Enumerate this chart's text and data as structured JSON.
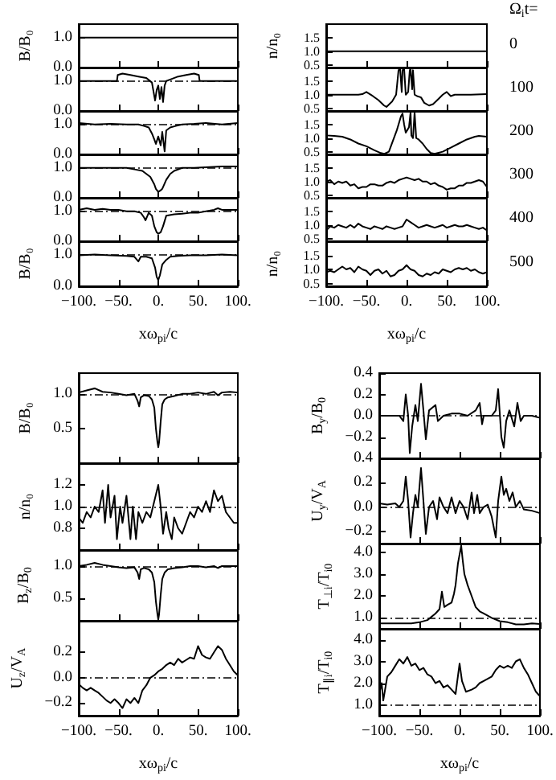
{
  "chart_data": [
    {
      "type": "line",
      "ylabel": "B/B₀",
      "color": "#000000",
      "x": [
        -100,
        100
      ],
      "values": [
        1,
        1
      ],
      "xlim": [
        -100,
        100
      ],
      "ylim": [
        0,
        1.45
      ],
      "xticks": [
        {
          "value": -100,
          "label": null
        },
        {
          "value": -50,
          "label": null
        },
        {
          "value": 0,
          "label": null
        },
        {
          "value": 50,
          "label": null
        },
        {
          "value": 100,
          "label": null
        }
      ],
      "yticks": [
        {
          "value": 0,
          "label": "0.0"
        },
        {
          "value": 1,
          "label": "1.0"
        }
      ],
      "tick_labels": "y"
    },
    {
      "type": "line",
      "color": "#000000",
      "x": [
        -100,
        -80,
        -60,
        -52,
        -51,
        -45,
        -35,
        -25,
        -15,
        -8,
        -4,
        -2,
        0,
        2,
        4,
        6,
        8,
        10,
        15,
        25,
        35,
        45,
        51,
        52,
        60,
        80,
        100
      ],
      "values": [
        1,
        1,
        1,
        1,
        1.2,
        1.25,
        1.2,
        1.15,
        1.1,
        0.95,
        0.35,
        0.7,
        0.85,
        0.4,
        0.8,
        0.3,
        0.85,
        1.0,
        1.05,
        1.15,
        1.2,
        1.25,
        1.2,
        1.0,
        1,
        1,
        1
      ],
      "xlim": [
        -100,
        100
      ],
      "ylim": [
        0,
        1.45
      ],
      "xticks": [
        {
          "value": -100,
          "label": null
        },
        {
          "value": -50,
          "label": null
        },
        {
          "value": 0,
          "label": null
        },
        {
          "value": 50,
          "label": null
        },
        {
          "value": 100,
          "label": null
        }
      ],
      "yticks": [
        {
          "value": 0,
          "label": "0.0"
        },
        {
          "value": 1,
          "label": "1.0"
        }
      ],
      "tick_labels": "y",
      "ref_lines": [
        {
          "axis": "y",
          "value": 1,
          "line_style": "dashed"
        }
      ]
    },
    {
      "type": "line",
      "color": "#000000",
      "x": [
        -100,
        -80,
        -60,
        -40,
        -25,
        -18,
        -12,
        -8,
        -5,
        -3,
        0,
        3,
        5,
        8,
        10,
        15,
        22,
        30,
        45,
        60,
        80,
        100
      ],
      "values": [
        1.05,
        1.0,
        1.02,
        1.0,
        1.0,
        0.95,
        0.9,
        0.7,
        0.5,
        0.35,
        0.6,
        0.3,
        0.75,
        0.1,
        0.8,
        0.9,
        0.95,
        1.0,
        1.02,
        1.05,
        1.0,
        1.05
      ],
      "xlim": [
        -100,
        100
      ],
      "ylim": [
        0,
        1.45
      ],
      "xticks": [
        {
          "value": -100,
          "label": null
        },
        {
          "value": -50,
          "label": null
        },
        {
          "value": 0,
          "label": null
        },
        {
          "value": 50,
          "label": null
        },
        {
          "value": 100,
          "label": null
        }
      ],
      "yticks": [
        {
          "value": 0,
          "label": "0.0"
        },
        {
          "value": 1,
          "label": "1.0"
        }
      ],
      "tick_labels": "y",
      "ref_lines": [
        {
          "axis": "y",
          "value": 1,
          "line_style": "dashed"
        }
      ]
    },
    {
      "type": "line",
      "color": "#000000",
      "x": [
        -100,
        -80,
        -60,
        -40,
        -30,
        -20,
        -10,
        -5,
        -3,
        0,
        3,
        5,
        10,
        15,
        20,
        30,
        45,
        60,
        80,
        100
      ],
      "values": [
        1.0,
        1.0,
        1.0,
        1.0,
        0.95,
        0.9,
        0.7,
        0.45,
        0.3,
        0.2,
        0.25,
        0.3,
        0.6,
        0.8,
        0.9,
        1.0,
        1.0,
        1.02,
        1.05,
        1.05
      ],
      "xlim": [
        -100,
        100
      ],
      "ylim": [
        0,
        1.45
      ],
      "xticks": [
        {
          "value": -100,
          "label": null
        },
        {
          "value": -50,
          "label": null
        },
        {
          "value": 0,
          "label": null
        },
        {
          "value": 50,
          "label": null
        },
        {
          "value": 100,
          "label": null
        }
      ],
      "yticks": [
        {
          "value": 0,
          "label": "0.0"
        },
        {
          "value": 1,
          "label": "1.0"
        }
      ],
      "tick_labels": "y",
      "ref_lines": [
        {
          "axis": "y",
          "value": 1,
          "line_style": "dashed"
        }
      ]
    },
    {
      "type": "line",
      "color": "#000000",
      "x": [
        -100,
        -90,
        -80,
        -70,
        -60,
        -50,
        -40,
        -30,
        -22,
        -18,
        -16,
        -12,
        -8,
        -5,
        -2,
        0,
        3,
        6,
        10,
        20,
        30,
        40,
        50,
        60,
        70,
        75,
        80,
        90,
        100
      ],
      "values": [
        1.05,
        1.1,
        1.05,
        1.08,
        1.05,
        1.05,
        1.0,
        1.0,
        0.95,
        0.8,
        0.7,
        0.95,
        0.85,
        0.5,
        0.3,
        0.25,
        0.3,
        0.5,
        0.85,
        0.9,
        0.92,
        0.95,
        0.95,
        1.0,
        1.05,
        1.1,
        1.05,
        1.05,
        1.05
      ],
      "xlim": [
        -100,
        100
      ],
      "ylim": [
        0,
        1.45
      ],
      "xticks": [
        {
          "value": -100,
          "label": null
        },
        {
          "value": -50,
          "label": null
        },
        {
          "value": 0,
          "label": null
        },
        {
          "value": 50,
          "label": null
        },
        {
          "value": 100,
          "label": null
        }
      ],
      "yticks": [
        {
          "value": 0,
          "label": "0.0"
        },
        {
          "value": 1,
          "label": "1.0"
        }
      ],
      "tick_labels": "y",
      "ref_lines": [
        {
          "axis": "y",
          "value": 1,
          "line_style": "dashed"
        }
      ]
    },
    {
      "type": "line",
      "ylabel": "B/B₀",
      "xlabel": "xω$_{pi}$/c",
      "color": "#000000",
      "x": [
        -100,
        -80,
        -60,
        -40,
        -30,
        -25,
        -22,
        -15,
        -8,
        -4,
        -2,
        0,
        2,
        5,
        10,
        15,
        25,
        40,
        60,
        80,
        100
      ],
      "values": [
        1.0,
        1.02,
        1.0,
        0.98,
        0.95,
        0.8,
        0.95,
        0.95,
        0.9,
        0.6,
        0.3,
        0.2,
        0.35,
        0.7,
        0.85,
        0.95,
        0.98,
        1.0,
        1.0,
        1.02,
        1.0
      ],
      "xlim": [
        -100,
        100
      ],
      "ylim": [
        0,
        1.45
      ],
      "xticks": [
        {
          "value": -100,
          "label": "−100."
        },
        {
          "value": -50,
          "label": "−50."
        },
        {
          "value": 0,
          "label": "0."
        },
        {
          "value": 50,
          "label": "50."
        },
        {
          "value": 100,
          "label": "100."
        }
      ],
      "yticks": [
        {
          "value": 0,
          "label": "0.0"
        },
        {
          "value": 1,
          "label": "1.0"
        }
      ],
      "ref_lines": [
        {
          "axis": "y",
          "value": 1,
          "line_style": "dashed"
        }
      ]
    },
    {
      "type": "line",
      "ylabel": "n/n₀",
      "annotations": [
        "Ω$_{i}$t=",
        "0"
      ],
      "color": "#000000",
      "x": [
        -100,
        100
      ],
      "values": [
        1,
        1
      ],
      "xlim": [
        -100,
        100
      ],
      "ylim": [
        0.4,
        2.0
      ],
      "xticks": [
        {
          "value": -100,
          "label": null
        },
        {
          "value": -50,
          "label": null
        },
        {
          "value": 0,
          "label": null
        },
        {
          "value": 50,
          "label": null
        },
        {
          "value": 100,
          "label": null
        }
      ],
      "yticks": [
        {
          "value": 0.5,
          "label": "0.5"
        },
        {
          "value": 1,
          "label": "1.0"
        },
        {
          "value": 1.5,
          "label": "1.5"
        }
      ],
      "tick_labels": "y"
    },
    {
      "type": "line",
      "annotations": [
        "100"
      ],
      "color": "#000000",
      "x": [
        -100,
        -80,
        -60,
        -55,
        -50,
        -42,
        -35,
        -28,
        -25,
        -18,
        -13,
        -10,
        -8,
        -6,
        -5,
        -3,
        -1,
        0,
        2,
        4,
        5,
        7,
        8,
        10,
        13,
        18,
        22,
        28,
        33,
        40,
        45,
        50,
        55,
        60,
        80,
        100
      ],
      "values": [
        1.0,
        1.0,
        1.0,
        1.02,
        1.1,
        0.95,
        0.8,
        0.6,
        0.55,
        0.75,
        1.0,
        1.9,
        1.95,
        1.1,
        1.9,
        1.95,
        1.0,
        1.0,
        1.1,
        1.9,
        1.95,
        1.2,
        1.9,
        1.0,
        0.95,
        0.9,
        0.7,
        0.6,
        0.65,
        0.85,
        1.0,
        1.1,
        0.95,
        1.0,
        1.0,
        1.02
      ],
      "xlim": [
        -100,
        100
      ],
      "ylim": [
        0.4,
        2.0
      ],
      "xticks": [
        {
          "value": -100,
          "label": null
        },
        {
          "value": -50,
          "label": null
        },
        {
          "value": 0,
          "label": null
        },
        {
          "value": 50,
          "label": null
        },
        {
          "value": 100,
          "label": null
        }
      ],
      "yticks": [
        {
          "value": 0.5,
          "label": "0.5"
        },
        {
          "value": 1,
          "label": "1.0"
        },
        {
          "value": 1.5,
          "label": "1.5"
        }
      ],
      "tick_labels": "y"
    },
    {
      "type": "line",
      "annotations": [
        "200"
      ],
      "color": "#000000",
      "x": [
        -100,
        -90,
        -80,
        -70,
        -60,
        -50,
        -40,
        -32,
        -28,
        -22,
        -17,
        -12,
        -9,
        -7,
        -5,
        -3,
        -1,
        1,
        3,
        5,
        6,
        8,
        10,
        12,
        15,
        20,
        25,
        30,
        35,
        45,
        55,
        65,
        75,
        85,
        90,
        100
      ],
      "values": [
        1.1,
        1.08,
        1.05,
        0.95,
        0.8,
        0.7,
        0.55,
        0.45,
        0.42,
        0.5,
        0.9,
        1.3,
        1.6,
        1.8,
        1.9,
        1.5,
        1.2,
        1.3,
        1.4,
        1.95,
        1.1,
        1.0,
        1.95,
        1.0,
        0.95,
        0.8,
        0.6,
        0.45,
        0.42,
        0.5,
        0.65,
        0.8,
        0.95,
        1.05,
        1.08,
        1.05
      ],
      "xlim": [
        -100,
        100
      ],
      "ylim": [
        0.4,
        2.0
      ],
      "xticks": [
        {
          "value": -100,
          "label": null
        },
        {
          "value": -50,
          "label": null
        },
        {
          "value": 0,
          "label": null
        },
        {
          "value": 50,
          "label": null
        },
        {
          "value": 100,
          "label": null
        }
      ],
      "yticks": [
        {
          "value": 0.5,
          "label": "0.5"
        },
        {
          "value": 1,
          "label": "1.0"
        },
        {
          "value": 1.5,
          "label": "1.5"
        }
      ],
      "tick_labels": "y"
    },
    {
      "type": "line",
      "annotations": [
        "300"
      ],
      "color": "#000000",
      "x": [
        -100,
        -95,
        -90,
        -85,
        -80,
        -75,
        -70,
        -65,
        -60,
        -55,
        -50,
        -45,
        -40,
        -35,
        -30,
        -25,
        -20,
        -15,
        -10,
        -5,
        0,
        5,
        10,
        15,
        20,
        25,
        30,
        35,
        40,
        45,
        50,
        55,
        60,
        65,
        70,
        75,
        80,
        85,
        90,
        95,
        100
      ],
      "values": [
        1.0,
        1.05,
        0.9,
        1.0,
        0.95,
        1.0,
        0.85,
        0.9,
        0.75,
        0.8,
        0.8,
        0.9,
        0.9,
        0.85,
        0.85,
        0.95,
        1.0,
        0.95,
        1.05,
        1.1,
        1.15,
        1.1,
        1.05,
        1.1,
        1.0,
        1.0,
        0.9,
        0.95,
        0.85,
        0.8,
        0.7,
        0.75,
        0.75,
        0.85,
        0.85,
        0.95,
        0.95,
        1.0,
        1.05,
        1.0,
        0.8
      ],
      "xlim": [
        -100,
        100
      ],
      "ylim": [
        0.4,
        2.0
      ],
      "xticks": [
        {
          "value": -100,
          "label": null
        },
        {
          "value": -50,
          "label": null
        },
        {
          "value": 0,
          "label": null
        },
        {
          "value": 50,
          "label": null
        },
        {
          "value": 100,
          "label": null
        }
      ],
      "yticks": [
        {
          "value": 0.5,
          "label": "0.5"
        },
        {
          "value": 1,
          "label": "1.0"
        },
        {
          "value": 1.5,
          "label": "1.5"
        }
      ],
      "tick_labels": "y"
    },
    {
      "type": "line",
      "annotations": [
        "400"
      ],
      "color": "#000000",
      "x": [
        -100,
        -95,
        -90,
        -85,
        -80,
        -75,
        -70,
        -65,
        -60,
        -55,
        -50,
        -45,
        -40,
        -35,
        -30,
        -25,
        -20,
        -15,
        -10,
        -5,
        0,
        5,
        10,
        15,
        20,
        25,
        30,
        35,
        40,
        45,
        50,
        55,
        60,
        65,
        70,
        75,
        80,
        85,
        90,
        95,
        100
      ],
      "values": [
        0.8,
        0.95,
        0.9,
        1.0,
        0.95,
        0.9,
        1.0,
        0.9,
        1.05,
        0.95,
        0.9,
        0.85,
        0.95,
        0.9,
        0.85,
        0.95,
        0.9,
        0.85,
        0.9,
        0.95,
        1.2,
        1.1,
        1.0,
        0.9,
        0.95,
        1.0,
        0.95,
        0.9,
        0.95,
        1.0,
        0.9,
        0.95,
        1.0,
        0.95,
        0.95,
        1.0,
        0.95,
        0.9,
        0.85,
        0.9,
        0.8
      ],
      "xlim": [
        -100,
        100
      ],
      "ylim": [
        0.4,
        2.0
      ],
      "xticks": [
        {
          "value": -100,
          "label": null
        },
        {
          "value": -50,
          "label": null
        },
        {
          "value": 0,
          "label": null
        },
        {
          "value": 50,
          "label": null
        },
        {
          "value": 100,
          "label": null
        }
      ],
      "yticks": [
        {
          "value": 0.5,
          "label": "0.5"
        },
        {
          "value": 1,
          "label": "1.0"
        },
        {
          "value": 1.5,
          "label": "1.5"
        }
      ],
      "tick_labels": "y"
    },
    {
      "type": "line",
      "annotations": [
        "500"
      ],
      "xlabel": "xω$_{pi}$/c",
      "ylabel": "n/n₀",
      "color": "#000000",
      "x": [
        -100,
        -95,
        -90,
        -85,
        -80,
        -75,
        -70,
        -65,
        -60,
        -55,
        -50,
        -45,
        -40,
        -35,
        -30,
        -25,
        -20,
        -15,
        -10,
        -5,
        0,
        5,
        10,
        15,
        20,
        25,
        30,
        35,
        40,
        45,
        50,
        55,
        60,
        65,
        70,
        75,
        80,
        85,
        90,
        95,
        100
      ],
      "values": [
        0.9,
        0.95,
        0.9,
        1.0,
        1.1,
        1.0,
        1.05,
        0.9,
        1.1,
        1.0,
        0.95,
        0.8,
        0.95,
        1.0,
        0.85,
        0.95,
        0.75,
        0.8,
        0.95,
        1.0,
        1.15,
        1.0,
        0.95,
        0.8,
        0.75,
        0.85,
        0.8,
        0.9,
        0.85,
        1.0,
        0.95,
        0.9,
        1.0,
        1.05,
        1.0,
        1.05,
        0.95,
        1.0,
        0.9,
        0.85,
        0.9
      ],
      "xlim": [
        -100,
        100
      ],
      "ylim": [
        0.4,
        2.0
      ],
      "xticks": [
        {
          "value": -100,
          "label": "−100."
        },
        {
          "value": -50,
          "label": "−50."
        },
        {
          "value": 0,
          "label": "0."
        },
        {
          "value": 50,
          "label": "50."
        },
        {
          "value": 100,
          "label": "100."
        }
      ],
      "yticks": [
        {
          "value": 0.5,
          "label": "0.5"
        },
        {
          "value": 1,
          "label": "1.0"
        },
        {
          "value": 1.5,
          "label": "1.5"
        }
      ]
    },
    {
      "type": "line",
      "ylabel": "B/B₀",
      "color": "#000000",
      "x": [
        -100,
        -90,
        -80,
        -70,
        -60,
        -50,
        -40,
        -30,
        -26,
        -24,
        -22,
        -18,
        -12,
        -8,
        -5,
        -3,
        -1,
        0,
        1,
        3,
        5,
        8,
        12,
        20,
        30,
        40,
        50,
        60,
        70,
        75,
        80,
        90,
        100
      ],
      "values": [
        1.02,
        1.05,
        1.08,
        1.03,
        1.02,
        1.0,
        0.98,
        1.0,
        0.9,
        0.82,
        0.95,
        0.98,
        0.97,
        0.92,
        0.8,
        0.5,
        0.3,
        0.23,
        0.3,
        0.6,
        0.85,
        0.92,
        0.95,
        0.97,
        1.0,
        1.0,
        1.02,
        1.0,
        1.03,
        0.98,
        1.02,
        1.03,
        1.02
      ],
      "xlim": [
        -100,
        100
      ],
      "ylim": [
        0,
        1.3
      ],
      "xticks": [
        {
          "value": -100,
          "label": null
        },
        {
          "value": -50,
          "label": null
        },
        {
          "value": 0,
          "label": null
        },
        {
          "value": 50,
          "label": null
        },
        {
          "value": 100,
          "label": null
        }
      ],
      "yticks": [
        {
          "value": 0.5,
          "label": "0.5"
        },
        {
          "value": 1,
          "label": "1.0"
        }
      ],
      "tick_labels": "y",
      "ref_lines": [
        {
          "axis": "y",
          "value": 1,
          "line_style": "dashed"
        }
      ]
    },
    {
      "type": "line",
      "ylabel": "n/n₀",
      "color": "#000000",
      "x": [
        -100,
        -95,
        -90,
        -85,
        -80,
        -75,
        -70,
        -67,
        -63,
        -60,
        -55,
        -52,
        -48,
        -45,
        -40,
        -35,
        -32,
        -28,
        -25,
        -20,
        -15,
        -10,
        -5,
        0,
        3,
        6,
        10,
        13,
        17,
        20,
        25,
        30,
        35,
        40,
        45,
        50,
        55,
        60,
        65,
        70,
        75,
        80,
        85,
        90,
        95,
        100
      ],
      "values": [
        0.9,
        0.85,
        0.95,
        0.9,
        1.0,
        0.95,
        1.15,
        0.85,
        1.2,
        0.9,
        1.1,
        0.7,
        1.0,
        0.85,
        1.1,
        0.7,
        1.0,
        0.7,
        0.95,
        0.85,
        0.95,
        0.9,
        1.05,
        1.2,
        1.0,
        0.75,
        0.95,
        0.8,
        0.7,
        0.9,
        0.8,
        0.75,
        0.85,
        0.95,
        0.9,
        1.0,
        0.95,
        1.05,
        0.95,
        1.15,
        1.05,
        1.1,
        0.95,
        0.9,
        0.85,
        0.85
      ],
      "xlim": [
        -100,
        100
      ],
      "ylim": [
        0.6,
        1.4
      ],
      "xticks": [
        {
          "value": -100,
          "label": null
        },
        {
          "value": -50,
          "label": null
        },
        {
          "value": 0,
          "label": null
        },
        {
          "value": 50,
          "label": null
        },
        {
          "value": 100,
          "label": null
        }
      ],
      "yticks": [
        {
          "value": 0.8,
          "label": "0.8"
        },
        {
          "value": 1,
          "label": "1.0"
        },
        {
          "value": 1.2,
          "label": "1.2"
        }
      ],
      "tick_labels": "y",
      "ref_lines": [
        {
          "axis": "y",
          "value": 1,
          "line_style": "dashed"
        }
      ]
    },
    {
      "type": "line",
      "ylabel": "B$_{z}$/B$_{0}$",
      "color": "#000000",
      "x": [
        -100,
        -90,
        -80,
        -70,
        -60,
        -50,
        -40,
        -30,
        -26,
        -24,
        -22,
        -18,
        -12,
        -8,
        -5,
        -3,
        -1,
        0,
        1,
        3,
        5,
        8,
        12,
        20,
        30,
        40,
        50,
        60,
        70,
        75,
        80,
        90,
        100
      ],
      "values": [
        1.0,
        1.02,
        1.05,
        1.02,
        1.0,
        0.98,
        0.97,
        0.98,
        0.9,
        0.8,
        0.95,
        0.97,
        0.95,
        0.9,
        0.75,
        0.45,
        0.25,
        0.17,
        0.25,
        0.55,
        0.8,
        0.9,
        0.95,
        0.97,
        0.98,
        1.0,
        1.0,
        0.98,
        1.0,
        0.97,
        1.0,
        1.0,
        1.0
      ],
      "xlim": [
        -100,
        100
      ],
      "ylim": [
        0.15,
        1.25
      ],
      "xticks": [
        {
          "value": -100,
          "label": null
        },
        {
          "value": -50,
          "label": null
        },
        {
          "value": 0,
          "label": null
        },
        {
          "value": 50,
          "label": null
        },
        {
          "value": 100,
          "label": null
        }
      ],
      "yticks": [
        {
          "value": 0.5,
          "label": "0.5"
        },
        {
          "value": 1,
          "label": "1.0"
        }
      ],
      "tick_labels": "y",
      "ref_lines": [
        {
          "axis": "y",
          "value": 1,
          "line_style": "dashed"
        }
      ]
    },
    {
      "type": "line",
      "ylabel": "U$_{z}$/V$_{A}$",
      "xlabel": "xω$_{pi}$/c",
      "color": "#000000",
      "x": [
        -100,
        -95,
        -90,
        -85,
        -80,
        -75,
        -70,
        -65,
        -60,
        -55,
        -50,
        -45,
        -40,
        -35,
        -30,
        -25,
        -20,
        -15,
        -10,
        -5,
        0,
        5,
        10,
        15,
        20,
        25,
        30,
        35,
        40,
        45,
        50,
        55,
        60,
        65,
        70,
        75,
        80,
        85,
        90,
        95,
        100
      ],
      "values": [
        -0.05,
        -0.08,
        -0.1,
        -0.08,
        -0.1,
        -0.12,
        -0.15,
        -0.18,
        -0.2,
        -0.17,
        -0.2,
        -0.24,
        -0.17,
        -0.2,
        -0.16,
        -0.2,
        -0.1,
        -0.06,
        0.0,
        0.02,
        0.05,
        0.07,
        0.1,
        0.12,
        0.1,
        0.15,
        0.12,
        0.14,
        0.16,
        0.15,
        0.25,
        0.18,
        0.16,
        0.15,
        0.2,
        0.25,
        0.22,
        0.15,
        0.1,
        0.05,
        0.02
      ],
      "xlim": [
        -100,
        100
      ],
      "ylim": [
        -0.3,
        0.45
      ],
      "xticks": [
        {
          "value": -100,
          "label": "−100."
        },
        {
          "value": -50,
          "label": "−50."
        },
        {
          "value": 0,
          "label": "0."
        },
        {
          "value": 50,
          "label": "50."
        },
        {
          "value": 100,
          "label": "100."
        }
      ],
      "yticks": [
        {
          "value": -0.2,
          "label": "−0.2"
        },
        {
          "value": 0,
          "label": "0.0"
        },
        {
          "value": 0.2,
          "label": "0.2"
        }
      ],
      "ref_lines": [
        {
          "axis": "y",
          "value": 0,
          "line_style": "dashed"
        }
      ]
    },
    {
      "type": "line",
      "ylabel": "B$_{y}$/B$_{0}$",
      "color": "#000000",
      "x": [
        -100,
        -85,
        -75,
        -70,
        -67,
        -64,
        -62,
        -59,
        -55,
        -52,
        -48,
        -45,
        -42,
        -38,
        -30,
        -27,
        -20,
        -10,
        0,
        10,
        20,
        25,
        28,
        30,
        40,
        45,
        48,
        52,
        55,
        58,
        62,
        68,
        72,
        76,
        80,
        90,
        100
      ],
      "values": [
        0.0,
        0.0,
        0.0,
        -0.05,
        0.2,
        0.0,
        -0.35,
        -0.1,
        0.1,
        -0.05,
        0.3,
        0.05,
        -0.22,
        0.05,
        0.1,
        -0.05,
        0.0,
        0.02,
        0.02,
        0.0,
        0.05,
        0.12,
        -0.08,
        0.0,
        0.0,
        0.05,
        0.25,
        -0.2,
        -0.3,
        -0.05,
        0.05,
        -0.1,
        0.12,
        -0.05,
        0.0,
        0.0,
        -0.02
      ],
      "xlim": [
        -100,
        100
      ],
      "ylim": [
        -0.4,
        0.4
      ],
      "xticks": [
        {
          "value": -100,
          "label": null
        },
        {
          "value": -50,
          "label": null
        },
        {
          "value": 0,
          "label": null
        },
        {
          "value": 50,
          "label": null
        },
        {
          "value": 100,
          "label": null
        }
      ],
      "yticks": [
        {
          "value": -0.2,
          "label": "−0.2"
        },
        {
          "value": 0,
          "label": "0.0"
        },
        {
          "value": 0.2,
          "label": "0.2"
        },
        {
          "value": 0.4,
          "label": "0.4"
        }
      ],
      "tick_labels": "y",
      "ref_lines": [
        {
          "axis": "y",
          "value": 0,
          "line_style": "dashed"
        }
      ]
    },
    {
      "type": "line",
      "ylabel": "U$_{y}$/V$_{A}$",
      "color": "#000000",
      "x": [
        -100,
        -90,
        -80,
        -75,
        -70,
        -67,
        -64,
        -61,
        -58,
        -55,
        -52,
        -48,
        -45,
        -42,
        -38,
        -33,
        -28,
        -25,
        -20,
        -15,
        -10,
        -5,
        0,
        5,
        10,
        15,
        18,
        22,
        25,
        30,
        35,
        40,
        45,
        48,
        52,
        55,
        58,
        62,
        66,
        70,
        75,
        80,
        90,
        100
      ],
      "values": [
        0.03,
        0.02,
        0.03,
        0.0,
        0.05,
        0.25,
        0.05,
        -0.25,
        -0.05,
        0.1,
        0.0,
        0.32,
        0.05,
        -0.22,
        0.0,
        0.05,
        -0.1,
        0.08,
        0.0,
        -0.05,
        0.08,
        -0.05,
        0.05,
        0.0,
        -0.1,
        0.12,
        -0.05,
        0.1,
        -0.05,
        0.0,
        0.02,
        -0.08,
        -0.25,
        0.05,
        0.25,
        0.1,
        0.15,
        0.05,
        0.12,
        0.0,
        0.05,
        -0.02,
        -0.03,
        -0.05
      ],
      "xlim": [
        -100,
        100
      ],
      "ylim": [
        -0.3,
        0.4
      ],
      "xticks": [
        {
          "value": -100,
          "label": null
        },
        {
          "value": -50,
          "label": null
        },
        {
          "value": 0,
          "label": null
        },
        {
          "value": 50,
          "label": null
        },
        {
          "value": 100,
          "label": null
        }
      ],
      "yticks": [
        {
          "value": -0.2,
          "label": "−0.2"
        },
        {
          "value": 0,
          "label": "0.0"
        },
        {
          "value": 0.2,
          "label": "0.2"
        },
        {
          "value": 0.4,
          "label": "0.4"
        }
      ],
      "tick_labels": "y",
      "ref_lines": [
        {
          "axis": "y",
          "value": 0,
          "line_style": "dashed"
        }
      ]
    },
    {
      "type": "line",
      "ylabel": "T$_{⊥i}$/T$_{i0}$",
      "color": "#000000",
      "x": [
        -100,
        -80,
        -60,
        -50,
        -40,
        -30,
        -25,
        -22,
        -19,
        -15,
        -10,
        -7,
        -5,
        -2,
        0,
        2,
        4,
        6,
        10,
        15,
        20,
        25,
        30,
        40,
        50,
        60,
        70,
        80,
        90,
        100
      ],
      "values": [
        0.75,
        0.75,
        0.75,
        0.8,
        0.9,
        1.2,
        1.4,
        2.2,
        1.5,
        1.6,
        1.7,
        2.1,
        2.5,
        3.5,
        3.9,
        4.3,
        3.6,
        3.0,
        2.5,
        2.0,
        1.5,
        1.3,
        1.2,
        1.0,
        0.85,
        0.8,
        0.7,
        0.7,
        0.75,
        0.72
      ],
      "xlim": [
        -100,
        100
      ],
      "ylim": [
        0.5,
        4.4
      ],
      "xticks": [
        {
          "value": -100,
          "label": null
        },
        {
          "value": -50,
          "label": null
        },
        {
          "value": 0,
          "label": null
        },
        {
          "value": 50,
          "label": null
        },
        {
          "value": 100,
          "label": null
        }
      ],
      "yticks": [
        {
          "value": 1,
          "label": "1.0"
        },
        {
          "value": 2,
          "label": "2.0"
        },
        {
          "value": 3,
          "label": "3.0"
        },
        {
          "value": 4,
          "label": "4.0"
        }
      ],
      "tick_labels": "y",
      "ref_lines": [
        {
          "axis": "y",
          "value": 1,
          "line_style": "dashed"
        }
      ]
    },
    {
      "type": "line",
      "ylabel": "T$_{∥i}$/T$_{i0}$",
      "xlabel": "xω$_{pi}$/c",
      "color": "#000000",
      "x": [
        -100,
        -97,
        -95,
        -90,
        -85,
        -80,
        -75,
        -70,
        -65,
        -60,
        -55,
        -50,
        -45,
        -40,
        -35,
        -30,
        -25,
        -20,
        -15,
        -10,
        -5,
        0,
        3,
        8,
        15,
        20,
        25,
        30,
        35,
        40,
        45,
        50,
        55,
        60,
        65,
        70,
        75,
        80,
        85,
        90,
        95,
        100
      ],
      "values": [
        1.5,
        2.0,
        1.2,
        2.3,
        2.5,
        2.8,
        3.1,
        2.9,
        3.2,
        2.8,
        2.9,
        2.6,
        2.7,
        2.4,
        2.3,
        2.0,
        2.1,
        1.8,
        1.9,
        1.7,
        1.5,
        2.9,
        2.1,
        1.6,
        1.7,
        1.8,
        2.0,
        2.1,
        2.2,
        2.3,
        2.6,
        2.8,
        2.7,
        2.8,
        2.7,
        3.0,
        3.1,
        2.7,
        2.4,
        2.0,
        1.6,
        1.4
      ],
      "xlim": [
        -100,
        100
      ],
      "ylim": [
        0.5,
        4.5
      ],
      "xticks": [
        {
          "value": -100,
          "label": "−100."
        },
        {
          "value": -50,
          "label": "−50."
        },
        {
          "value": 0,
          "label": "0."
        },
        {
          "value": 50,
          "label": "50."
        },
        {
          "value": 100,
          "label": "100."
        }
      ],
      "yticks": [
        {
          "value": 1,
          "label": "1.0"
        },
        {
          "value": 2,
          "label": "2.0"
        },
        {
          "value": 3,
          "label": "3.0"
        },
        {
          "value": 4,
          "label": "4.0"
        }
      ],
      "ref_lines": [
        {
          "axis": "y",
          "value": 1,
          "line_style": "dashed"
        }
      ]
    }
  ]
}
